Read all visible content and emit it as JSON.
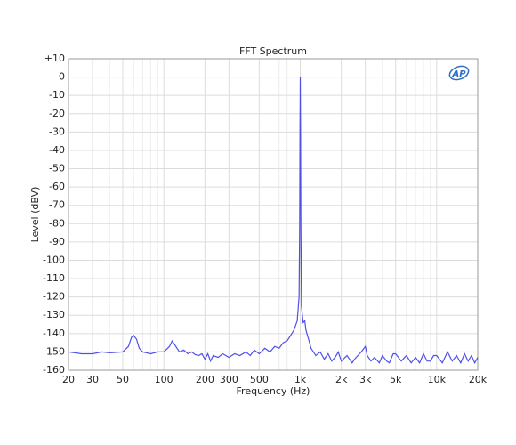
{
  "logo": "AP",
  "chart_data": {
    "type": "line",
    "title": "FFT Spectrum",
    "xlabel": "Frequency (Hz)",
    "ylabel": "Level (dBV)",
    "xscale": "log",
    "grid": true,
    "color": "#5050e8",
    "xlim": [
      20,
      20000
    ],
    "ylim": [
      -160,
      10
    ],
    "xticks": [
      20,
      30,
      50,
      100,
      200,
      300,
      500,
      {
        "value": 1000,
        "label": "1k"
      },
      {
        "value": 2000,
        "label": "2k"
      },
      {
        "value": 3000,
        "label": "3k"
      },
      {
        "value": 5000,
        "label": "5k"
      },
      {
        "value": 10000,
        "label": "10k"
      },
      {
        "value": 20000,
        "label": "20k"
      }
    ],
    "xminorticks": [
      40,
      60,
      70,
      80,
      90,
      400,
      600,
      700,
      800,
      900,
      4000,
      6000,
      7000,
      8000,
      9000
    ],
    "yticks": [
      {
        "value": 10,
        "label": "+10"
      },
      0,
      -10,
      -20,
      -30,
      -40,
      -50,
      -60,
      -70,
      -80,
      -90,
      -100,
      -110,
      -120,
      -130,
      -140,
      -150,
      -160
    ],
    "x": [
      20,
      25,
      30,
      35,
      40,
      50,
      55,
      58,
      60,
      63,
      66,
      70,
      80,
      90,
      100,
      110,
      115,
      120,
      130,
      140,
      150,
      160,
      170,
      180,
      190,
      200,
      210,
      220,
      230,
      250,
      270,
      300,
      330,
      360,
      400,
      430,
      460,
      500,
      550,
      600,
      650,
      700,
      750,
      800,
      850,
      900,
      950,
      980,
      990,
      995,
      1000,
      1005,
      1010,
      1020,
      1050,
      1080,
      1100,
      1150,
      1200,
      1300,
      1400,
      1500,
      1600,
      1700,
      1800,
      1900,
      2000,
      2200,
      2400,
      2500,
      2800,
      3000,
      3100,
      3300,
      3500,
      3800,
      4000,
      4300,
      4500,
      4800,
      5000,
      5500,
      6000,
      6500,
      7000,
      7500,
      8000,
      8500,
      9000,
      9500,
      10000,
      11000,
      12000,
      13000,
      14000,
      15000,
      16000,
      17000,
      18000,
      19000,
      20000
    ],
    "values": [
      -150,
      -151,
      -151,
      -150,
      -150.5,
      -150,
      -147,
      -142,
      -141,
      -143,
      -148,
      -150,
      -151,
      -150,
      -150,
      -147,
      -144,
      -146,
      -150,
      -149,
      -151,
      -150,
      -151.5,
      -152,
      -151,
      -154,
      -151,
      -155,
      -152,
      -153,
      -151,
      -153,
      -151,
      -152,
      -150,
      -152,
      -149,
      -151,
      -148,
      -150,
      -147,
      -148,
      -145,
      -144,
      -141,
      -138,
      -133,
      -120,
      -80,
      -30,
      0,
      -30,
      -80,
      -125,
      -134,
      -133,
      -138,
      -143,
      -148,
      -152,
      -150,
      -154,
      -151,
      -155,
      -153,
      -150,
      -155,
      -152,
      -156,
      -154,
      -150,
      -147,
      -152,
      -155,
      -153,
      -156,
      -152,
      -155,
      -156,
      -151,
      -151,
      -155,
      -152,
      -156,
      -153,
      -156,
      -151,
      -155,
      -155,
      -152,
      -152,
      -156,
      -150,
      -155,
      -152,
      -156,
      -151,
      -155,
      -152,
      -156,
      -153
    ]
  }
}
